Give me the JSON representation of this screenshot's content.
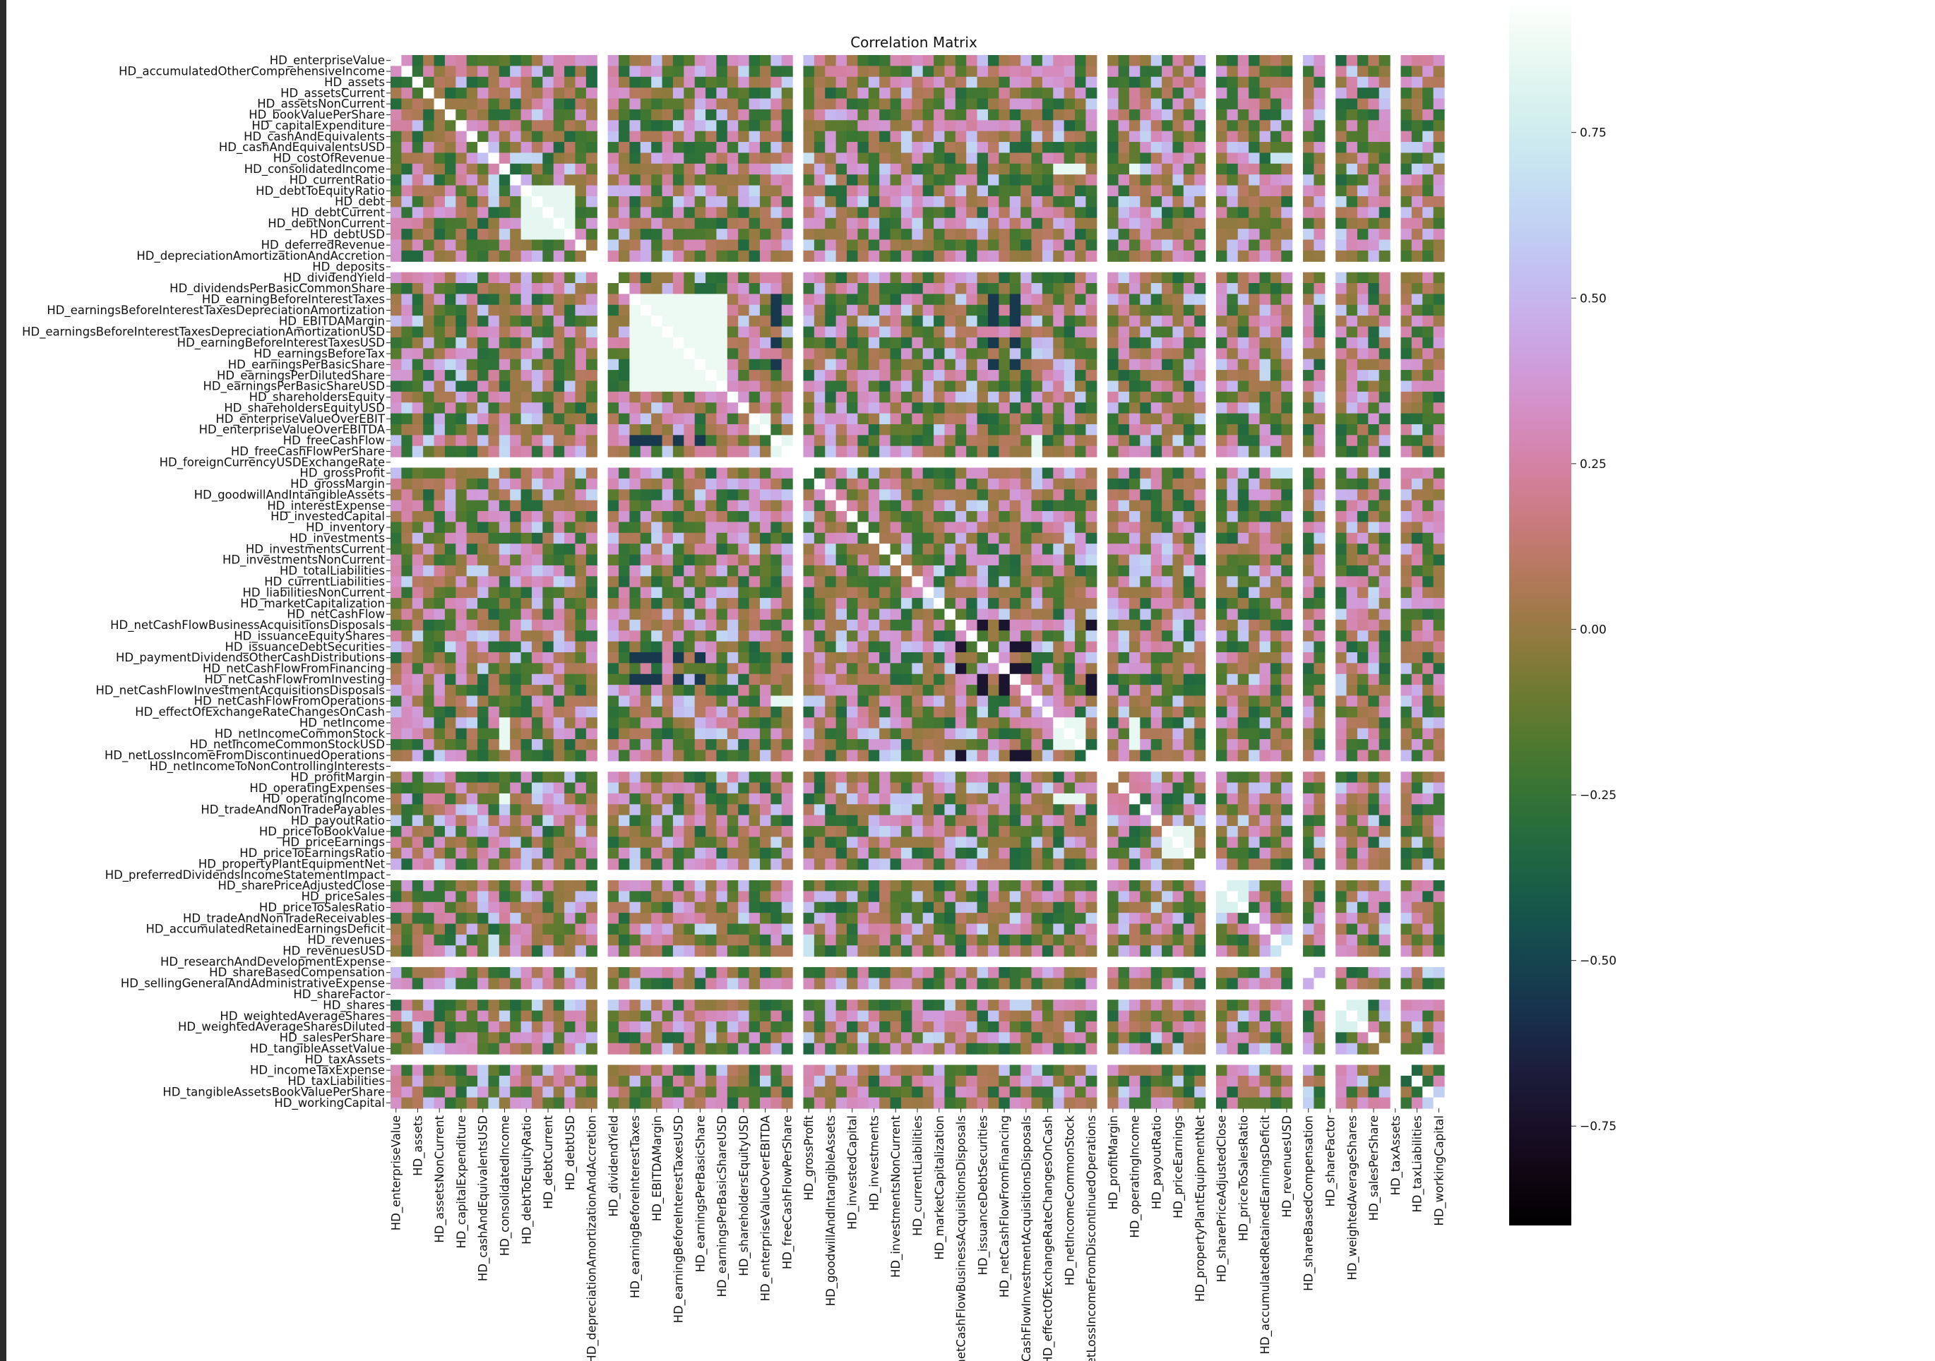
{
  "chart_data": {
    "type": "heatmap",
    "title": "Correlation Matrix",
    "colormap": "cubehelix",
    "variables": [
      "HD_enterpriseValue",
      "HD_accumulatedOtherComprehensiveIncome",
      "HD_assets",
      "HD_assetsCurrent",
      "HD_assetsNonCurrent",
      "HD_bookValuePerShare",
      "HD_capitalExpenditure",
      "HD_cashAndEquivalents",
      "HD_cashAndEquivalentsUSD",
      "HD_costOfRevenue",
      "HD_consolidatedIncome",
      "HD_currentRatio",
      "HD_debtToEquityRatio",
      "HD_debt",
      "HD_debtCurrent",
      "HD_debtNonCurrent",
      "HD_debtUSD",
      "HD_deferredRevenue",
      "HD_depreciationAmortizationAndAccretion",
      "HD_deposits",
      "HD_dividendYield",
      "HD_dividendsPerBasicCommonShare",
      "HD_earningBeforeInterestTaxes",
      "HD_earningsBeforeInterestTaxesDepreciationAmortization",
      "HD_EBITDAMargin",
      "HD_earningsBeforeInterestTaxesDepreciationAmortizationUSD",
      "HD_earningBeforeInterestTaxesUSD",
      "HD_earningsBeforeTax",
      "HD_earningsPerBasicShare",
      "HD_earningsPerDilutedShare",
      "HD_earningsPerBasicShareUSD",
      "HD_shareholdersEquity",
      "HD_shareholdersEquityUSD",
      "HD_enterpriseValueOverEBIT",
      "HD_enterpriseValueOverEBITDA",
      "HD_freeCashFlow",
      "HD_freeCashFlowPerShare",
      "HD_foreignCurrencyUSDExchangeRate",
      "HD_grossProfit",
      "HD_grossMargin",
      "HD_goodwillAndIntangibleAssets",
      "HD_interestExpense",
      "HD_investedCapital",
      "HD_inventory",
      "HD_investments",
      "HD_investmentsCurrent",
      "HD_investmentsNonCurrent",
      "HD_totalLiabilities",
      "HD_currentLiabilities",
      "HD_liabilitiesNonCurrent",
      "HD_marketCapitalization",
      "HD_netCashFlow",
      "HD_netCashFlowBusinessAcquisitionsDisposals",
      "HD_issuanceEquityShares",
      "HD_issuanceDebtSecurities",
      "HD_paymentDividendsOtherCashDistributions",
      "HD_netCashFlowFromFinancing",
      "HD_netCashFlowFromInvesting",
      "HD_netCashFlowInvestmentAcquisitionsDisposals",
      "HD_netCashFlowFromOperations",
      "HD_effectOfExchangeRateChangesOnCash",
      "HD_netIncome",
      "HD_netIncomeCommonStock",
      "HD_netIncomeCommonStockUSD",
      "HD_netLossIncomeFromDiscontinuedOperations",
      "HD_netIncomeToNonControllingInterests",
      "HD_profitMargin",
      "HD_operatingExpenses",
      "HD_operatingIncome",
      "HD_tradeAndNonTradePayables",
      "HD_payoutRatio",
      "HD_priceToBookValue",
      "HD_priceEarnings",
      "HD_priceToEarningsRatio",
      "HD_propertyPlantEquipmentNet",
      "HD_preferredDividendsIncomeStatementImpact",
      "HD_sharePriceAdjustedClose",
      "HD_priceSales",
      "HD_priceToSalesRatio",
      "HD_tradeAndNonTradeReceivables",
      "HD_accumulatedRetainedEarningsDeficit",
      "HD_revenues",
      "HD_revenuesUSD",
      "HD_researchAndDevelopmentExpense",
      "HD_shareBasedCompensation",
      "HD_sellingGeneralAndAdministrativeExpense",
      "HD_shareFactor",
      "HD_shares",
      "HD_weightedAverageShares",
      "HD_weightedAverageSharesDiluted",
      "HD_salesPerShare",
      "HD_tangibleAssetValue",
      "HD_taxAssets",
      "HD_incomeTaxExpense",
      "HD_taxLiabilities",
      "HD_tangibleAssetsBookValuePerShare",
      "HD_workingCapital"
    ],
    "x_tick_labels": [
      "HD_enterpriseValue",
      "HD_assets",
      "HD_assetsNonCurrent",
      "HD_capitalExpenditure",
      "HD_cashAndEquivalentsUSD",
      "HD_consolidatedIncome",
      "HD_debtToEquityRatio",
      "HD_debtCurrent",
      "HD_debtUSD",
      "HD_depreciationAmortizationAndAccretion",
      "HD_dividendYield",
      "HD_earningBeforeInterestTaxes",
      "HD_EBITDAMargin",
      "HD_earningBeforeInterestTaxesUSD",
      "HD_earningsPerBasicShare",
      "HD_earningsPerBasicShareUSD",
      "HD_shareholdersEquityUSD",
      "HD_enterpriseValueOverEBITDA",
      "HD_freeCashFlowPerShare",
      "HD_grossProfit",
      "HD_goodwillAndIntangibleAssets",
      "HD_investedCapital",
      "HD_investments",
      "HD_investmentsNonCurrent",
      "HD_currentLiabilities",
      "HD_marketCapitalization",
      "HD_netCashFlowBusinessAcquisitionsDisposals",
      "HD_issuanceDebtSecurities",
      "HD_netCashFlowFromFinancing",
      "HD_netCashFlowInvestmentAcquisitionsDisposals",
      "HD_effectOfExchangeRateChangesOnCash",
      "HD_netIncomeCommonStock",
      "HD_netLossIncomeFromDiscontinuedOperations",
      "HD_profitMargin",
      "HD_operatingIncome",
      "HD_payoutRatio",
      "HD_priceEarnings",
      "HD_propertyPlantEquipmentNet",
      "HD_sharePriceAdjustedClose",
      "HD_priceToSalesRatio",
      "HD_accumulatedRetainedEarningsDeficit",
      "HD_revenuesUSD",
      "HD_shareBasedCompensation",
      "HD_shareFactor",
      "HD_weightedAverageShares",
      "HD_salesPerShare",
      "HD_taxAssets",
      "HD_taxLiabilities",
      "HD_workingCapital"
    ],
    "empty_variables": [
      "HD_deposits",
      "HD_foreignCurrencyUSDExchangeRate",
      "HD_netIncomeToNonControllingInterests",
      "HD_preferredDividendsIncomeStatementImpact",
      "HD_researchAndDevelopmentExpense",
      "HD_shareFactor",
      "HD_taxAssets"
    ],
    "groups": [
      {
        "members": [
          "HD_debtToEquityRatio",
          "HD_debt",
          "HD_debtCurrent",
          "HD_debtNonCurrent",
          "HD_debtUSD"
        ],
        "r": 0.85
      },
      {
        "members": [
          "HD_earningBeforeInterestTaxes",
          "HD_earningsBeforeInterestTaxesDepreciationAmortization",
          "HD_EBITDAMargin",
          "HD_earningsBeforeInterestTaxesDepreciationAmortizationUSD",
          "HD_earningBeforeInterestTaxesUSD",
          "HD_earningsBeforeTax",
          "HD_earningsPerBasicShare",
          "HD_earningsPerDilutedShare",
          "HD_earningsPerBasicShareUSD"
        ],
        "r": 0.88
      },
      {
        "members": [
          "HD_netIncome",
          "HD_netIncomeCommonStock",
          "HD_netIncomeCommonStockUSD",
          "HD_consolidatedIncome",
          "HD_operatingIncome"
        ],
        "r": 0.86
      },
      {
        "members": [
          "HD_shares",
          "HD_weightedAverageShares",
          "HD_weightedAverageSharesDiluted"
        ],
        "r": 0.8
      },
      {
        "members": [
          "HD_revenues",
          "HD_revenuesUSD",
          "HD_grossProfit",
          "HD_costOfRevenue"
        ],
        "r": 0.7
      },
      {
        "members": [
          "HD_priceEarnings",
          "HD_priceToEarningsRatio",
          "HD_priceToBookValue"
        ],
        "r": 0.85
      },
      {
        "members": [
          "HD_sharePriceAdjustedClose",
          "HD_priceSales",
          "HD_priceToSalesRatio"
        ],
        "r": 0.8
      },
      {
        "members": [
          "HD_enterpriseValueOverEBIT",
          "HD_enterpriseValueOverEBITDA"
        ],
        "r": 0.85
      },
      {
        "members": [
          "HD_freeCashFlow",
          "HD_freeCashFlowPerShare",
          "HD_netCashFlowFromOperations"
        ],
        "r": 0.85
      }
    ],
    "anti_groups": [
      {
        "a": [
          "HD_earningBeforeInterestTaxes",
          "HD_earningsBeforeInterestTaxesDepreciationAmortization",
          "HD_EBITDAMargin",
          "HD_earningBeforeInterestTaxesUSD",
          "HD_earningsPerBasicShare"
        ],
        "b": [
          "HD_freeCashFlow",
          "HD_netCashFlowFromInvesting",
          "HD_paymentDividendsOtherCashDistributions"
        ],
        "r": -0.55
      },
      {
        "a": [
          "HD_netCashFlowBusinessAcquisitionsDisposals",
          "HD_netCashFlowInvestmentAcquisitionsDisposals",
          "HD_netCashFlowFromInvesting"
        ],
        "b": [
          "HD_issuanceDebtSecurities",
          "HD_netCashFlowFromFinancing",
          "HD_netLossIncomeFromDiscontinuedOperations"
        ],
        "r": -0.72
      }
    ],
    "vmin": -0.9,
    "vmax": 0.95,
    "colorbar_ticks": [
      0.75,
      0.5,
      0.25,
      0.0,
      -0.25,
      -0.5,
      -0.75
    ],
    "colorbar_tick_labels": [
      "0.75",
      "0.50",
      "0.25",
      "0.00",
      "−0.25",
      "−0.50",
      "−0.75"
    ],
    "diagonal": 1.0
  }
}
